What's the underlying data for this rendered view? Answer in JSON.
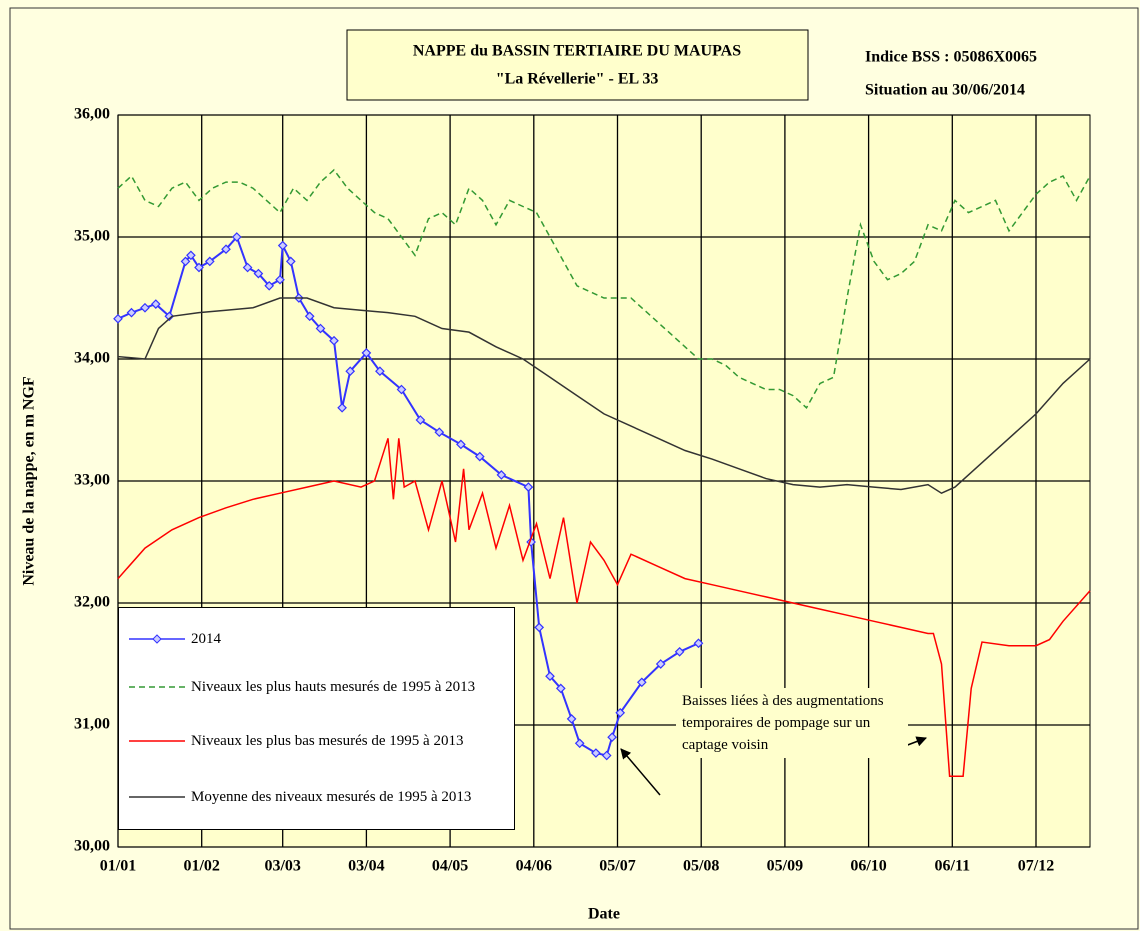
{
  "chart_data": {
    "type": "line",
    "title": "NAPPE du BASSIN TERTIAIRE DU MAUPAS",
    "subtitle": "\"La Révellerie\" - EL 33",
    "info": [
      "Indice BSS : 05086X0065",
      "Situation au 30/06/2014"
    ],
    "x_label": "Date",
    "y_label": "Niveau de la nappe, en m NGF",
    "annotation": "Baisses liées à des augmentations temporaires de pompage sur un captage voisin",
    "xlim": [
      0,
      360
    ],
    "xticks": [
      {
        "value": 0,
        "label": "01/01"
      },
      {
        "value": 31,
        "label": "01/02"
      },
      {
        "value": 61,
        "label": "03/03"
      },
      {
        "value": 92,
        "label": "03/04"
      },
      {
        "value": 123,
        "label": "04/05"
      },
      {
        "value": 154,
        "label": "04/06"
      },
      {
        "value": 185,
        "label": "05/07"
      },
      {
        "value": 216,
        "label": "05/08"
      },
      {
        "value": 247,
        "label": "05/09"
      },
      {
        "value": 278,
        "label": "06/10"
      },
      {
        "value": 309,
        "label": "06/11"
      },
      {
        "value": 340,
        "label": "07/12"
      }
    ],
    "ylim": [
      30,
      36
    ],
    "yticks": [
      {
        "value": 30,
        "label": "30,00"
      },
      {
        "value": 31,
        "label": "31,00"
      },
      {
        "value": 32,
        "label": "32,00"
      },
      {
        "value": 33,
        "label": "33,00"
      },
      {
        "value": 34,
        "label": "34,00"
      },
      {
        "value": 35,
        "label": "35,00"
      },
      {
        "value": 36,
        "label": "36,00"
      }
    ],
    "grid": true,
    "series": [
      {
        "name": "2014",
        "color": "#3333ff",
        "style": "solid",
        "marker": "diamond",
        "x": [
          0,
          5,
          10,
          14,
          19,
          25,
          27,
          30,
          34,
          40,
          44,
          48,
          52,
          56,
          60,
          61,
          64,
          67,
          71,
          75,
          80,
          83,
          86,
          92,
          97,
          105,
          112,
          119,
          127,
          134,
          142,
          152,
          153,
          156,
          160,
          164,
          168,
          171,
          177,
          181,
          183,
          186,
          194,
          201,
          208,
          215
        ],
        "values": [
          34.33,
          34.38,
          34.42,
          34.45,
          34.35,
          34.8,
          34.85,
          34.75,
          34.8,
          34.9,
          35.0,
          34.75,
          34.7,
          34.6,
          34.65,
          34.93,
          34.8,
          34.5,
          34.35,
          34.25,
          34.15,
          33.6,
          33.9,
          34.05,
          33.9,
          33.75,
          33.5,
          33.4,
          33.3,
          33.2,
          33.05,
          32.95,
          32.5,
          31.8,
          31.4,
          31.3,
          31.05,
          30.85,
          30.77,
          30.75,
          30.9,
          31.1,
          31.35,
          31.5,
          31.6,
          31.67
        ]
      },
      {
        "name": "Niveaux les plus hauts mesurés de 1995 à 2013",
        "color": "#339933",
        "style": "dashed",
        "x": [
          0,
          5,
          10,
          15,
          20,
          25,
          30,
          35,
          40,
          45,
          50,
          55,
          60,
          65,
          70,
          75,
          80,
          85,
          90,
          95,
          100,
          105,
          110,
          115,
          120,
          125,
          130,
          135,
          140,
          145,
          150,
          155,
          160,
          165,
          170,
          175,
          180,
          185,
          190,
          195,
          200,
          205,
          210,
          215,
          220,
          225,
          230,
          235,
          240,
          245,
          250,
          255,
          260,
          265,
          270,
          275,
          280,
          285,
          290,
          295,
          300,
          305,
          310,
          315,
          320,
          325,
          330,
          335,
          340,
          345,
          350,
          355,
          360
        ],
        "values": [
          35.4,
          35.5,
          35.3,
          35.25,
          35.4,
          35.45,
          35.3,
          35.4,
          35.45,
          35.45,
          35.4,
          35.3,
          35.2,
          35.4,
          35.3,
          35.45,
          35.55,
          35.4,
          35.3,
          35.2,
          35.15,
          35.0,
          34.85,
          35.15,
          35.2,
          35.1,
          35.4,
          35.3,
          35.1,
          35.3,
          35.25,
          35.2,
          35.0,
          34.8,
          34.6,
          34.55,
          34.5,
          34.5,
          34.5,
          34.4,
          34.3,
          34.2,
          34.1,
          34.0,
          34.0,
          33.95,
          33.85,
          33.8,
          33.75,
          33.75,
          33.7,
          33.6,
          33.8,
          33.85,
          34.5,
          35.1,
          34.8,
          34.65,
          34.7,
          34.8,
          35.1,
          35.05,
          35.3,
          35.2,
          35.25,
          35.3,
          35.05,
          35.2,
          35.35,
          35.45,
          35.5,
          35.3,
          35.5
        ]
      },
      {
        "name": "Niveaux les plus bas mesurés de 1995 à 2013",
        "color": "#ff0000",
        "style": "solid",
        "x": [
          0,
          10,
          20,
          30,
          40,
          50,
          60,
          70,
          80,
          90,
          95,
          100,
          102,
          104,
          106,
          110,
          115,
          120,
          125,
          128,
          130,
          135,
          140,
          145,
          150,
          155,
          160,
          165,
          170,
          175,
          180,
          185,
          190,
          200,
          210,
          220,
          230,
          240,
          250,
          260,
          270,
          280,
          290,
          300,
          302,
          305,
          308,
          313,
          316,
          320,
          330,
          340,
          345,
          350,
          360
        ],
        "values": [
          32.2,
          32.45,
          32.6,
          32.7,
          32.78,
          32.85,
          32.9,
          32.95,
          33.0,
          32.95,
          33.0,
          33.35,
          32.85,
          33.35,
          32.95,
          33.0,
          32.6,
          33.0,
          32.5,
          33.1,
          32.6,
          32.9,
          32.45,
          32.8,
          32.35,
          32.65,
          32.2,
          32.7,
          32.0,
          32.5,
          32.35,
          32.15,
          32.4,
          32.3,
          32.2,
          32.15,
          32.1,
          32.05,
          32.0,
          31.95,
          31.9,
          31.85,
          31.8,
          31.75,
          31.75,
          31.5,
          30.58,
          30.58,
          31.3,
          31.68,
          31.65,
          31.65,
          31.7,
          31.85,
          32.1
        ]
      },
      {
        "name": "Moyenne des niveaux mesurés de 1995 à 2013",
        "color": "#333333",
        "style": "solid",
        "x": [
          0,
          10,
          15,
          20,
          30,
          40,
          50,
          60,
          70,
          80,
          90,
          100,
          110,
          120,
          130,
          140,
          150,
          160,
          170,
          180,
          190,
          200,
          210,
          220,
          230,
          240,
          250,
          260,
          270,
          280,
          290,
          300,
          305,
          310,
          320,
          330,
          340,
          350,
          360
        ],
        "values": [
          34.02,
          34.0,
          34.25,
          34.35,
          34.38,
          34.4,
          34.42,
          34.5,
          34.5,
          34.42,
          34.4,
          34.38,
          34.35,
          34.25,
          34.22,
          34.1,
          34.0,
          33.85,
          33.7,
          33.55,
          33.45,
          33.35,
          33.25,
          33.18,
          33.1,
          33.02,
          32.97,
          32.95,
          32.97,
          32.95,
          32.93,
          32.97,
          32.9,
          32.95,
          33.15,
          33.35,
          33.55,
          33.8,
          34.0
        ]
      }
    ]
  }
}
